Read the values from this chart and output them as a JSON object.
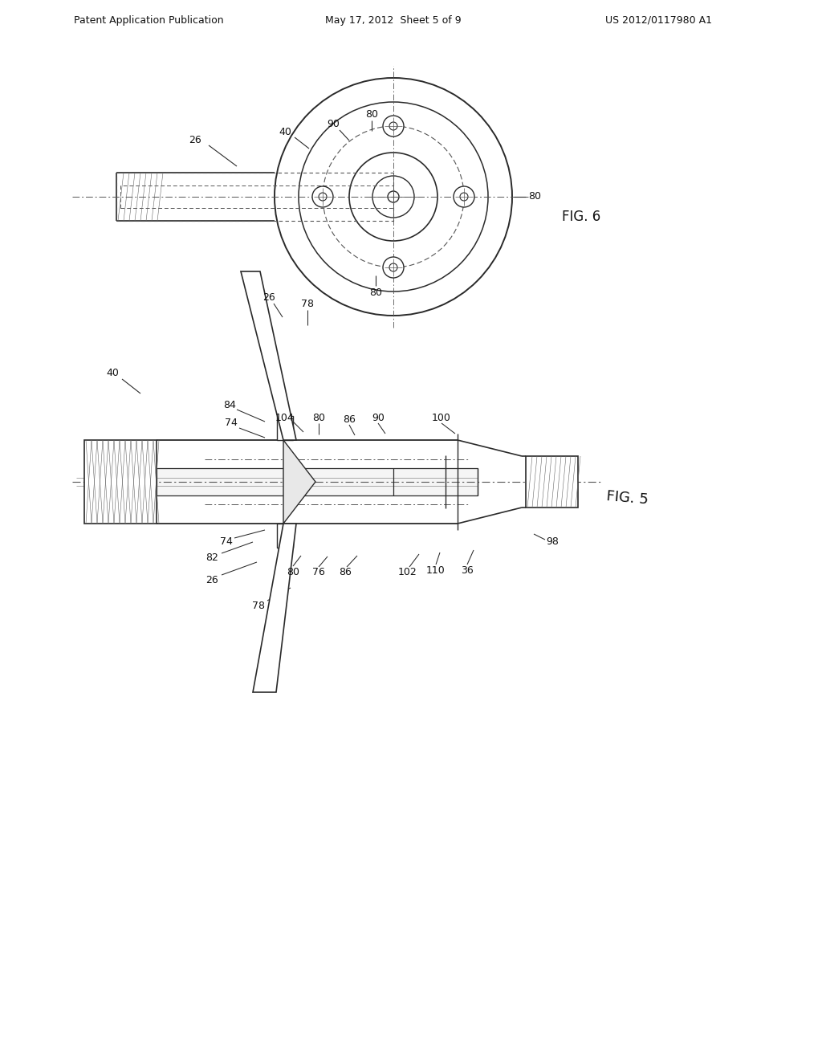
{
  "background_color": "#ffffff",
  "header_left": "Patent Application Publication",
  "header_center": "May 17, 2012  Sheet 5 of 9",
  "header_right": "US 2012/0117980 A1",
  "fig6_label": "FIG. 6",
  "fig5_label": "FIG. 5",
  "line_color": "#2a2a2a",
  "dash_color": "#444444",
  "hatch_color": "#666666"
}
